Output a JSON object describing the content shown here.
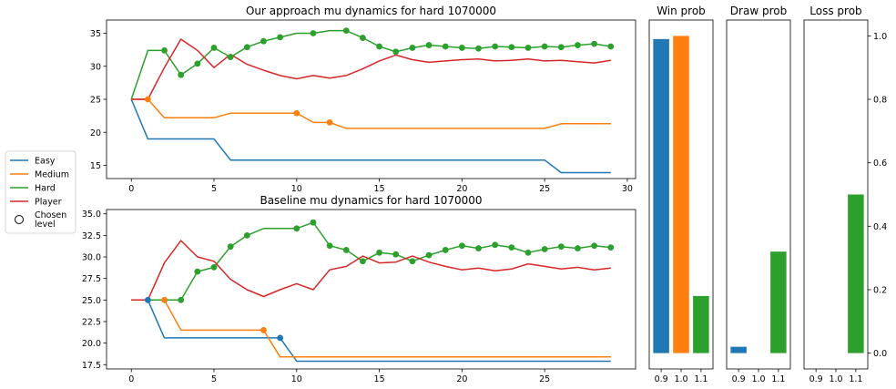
{
  "colors": {
    "Easy": "#1f77b4",
    "Medium": "#ff7f0e",
    "Hard": "#2ca02c",
    "Player": "#d62728"
  },
  "legend": {
    "placement": "left",
    "items": [
      {
        "label": "Easy",
        "series": "Easy"
      },
      {
        "label": "Medium",
        "series": "Medium"
      },
      {
        "label": "Hard",
        "series": "Hard"
      },
      {
        "label": "Player",
        "series": "Player"
      },
      {
        "label": "Chosen\nlevel",
        "marker": "open-circle"
      }
    ]
  },
  "chart_data": [
    {
      "id": "top",
      "type": "line",
      "title": "Our approach mu dynamics for hard 1070000",
      "xlim": [
        -1.5,
        30.5
      ],
      "ylim": [
        13,
        37
      ],
      "xticks": [
        0,
        5,
        10,
        15,
        20,
        25,
        30
      ],
      "yticks": [
        15,
        20,
        25,
        30,
        35
      ],
      "yticklabels": [
        "15",
        "20",
        "25",
        "30",
        "35"
      ],
      "x": [
        0,
        1,
        2,
        3,
        4,
        5,
        6,
        7,
        8,
        9,
        10,
        11,
        12,
        13,
        14,
        15,
        16,
        17,
        18,
        19,
        20,
        21,
        22,
        23,
        24,
        25,
        26,
        27,
        28,
        29
      ],
      "series": [
        {
          "name": "Easy",
          "values": [
            25,
            19,
            19,
            19,
            19,
            19,
            15.8,
            15.8,
            15.8,
            15.8,
            15.8,
            15.8,
            15.8,
            15.8,
            15.8,
            15.8,
            15.8,
            15.8,
            15.8,
            15.8,
            15.8,
            15.8,
            15.8,
            15.8,
            15.8,
            15.8,
            13.9,
            13.9,
            13.9,
            13.9
          ]
        },
        {
          "name": "Medium",
          "values": [
            25,
            25,
            22.2,
            22.2,
            22.2,
            22.2,
            22.9,
            22.9,
            22.9,
            22.9,
            22.9,
            21.5,
            21.5,
            20.6,
            20.6,
            20.6,
            20.6,
            20.6,
            20.6,
            20.6,
            20.6,
            20.6,
            20.6,
            20.6,
            20.6,
            20.6,
            21.3,
            21.3,
            21.3,
            21.3
          ]
        },
        {
          "name": "Hard",
          "values": [
            25,
            32.4,
            32.4,
            28.7,
            30.4,
            32.8,
            31.4,
            32.9,
            33.8,
            34.4,
            35,
            35,
            35.4,
            35.4,
            34.3,
            33,
            32.2,
            32.8,
            33.2,
            33,
            32.8,
            32.7,
            33,
            32.9,
            32.8,
            33,
            32.9,
            33.2,
            33.4,
            33
          ]
        },
        {
          "name": "Player",
          "values": [
            25,
            25,
            29.8,
            34.1,
            32.4,
            29.8,
            31.8,
            30.3,
            29.4,
            28.6,
            28.1,
            28.6,
            28.2,
            28.6,
            29.6,
            30.8,
            31.7,
            31,
            30.6,
            30.8,
            31,
            31.1,
            30.8,
            30.9,
            31.1,
            30.8,
            30.9,
            30.7,
            30.5,
            30.9
          ]
        }
      ],
      "chosen": [
        {
          "x": 1,
          "series": "Medium"
        },
        {
          "x": 2,
          "series": "Hard"
        },
        {
          "x": 3,
          "series": "Hard"
        },
        {
          "x": 4,
          "series": "Hard"
        },
        {
          "x": 5,
          "series": "Hard"
        },
        {
          "x": 6,
          "series": "Hard"
        },
        {
          "x": 7,
          "series": "Hard"
        },
        {
          "x": 8,
          "series": "Hard"
        },
        {
          "x": 9,
          "series": "Hard"
        },
        {
          "x": 10,
          "series": "Medium"
        },
        {
          "x": 11,
          "series": "Hard"
        },
        {
          "x": 12,
          "series": "Medium"
        },
        {
          "x": 13,
          "series": "Hard"
        },
        {
          "x": 14,
          "series": "Hard"
        },
        {
          "x": 15,
          "series": "Hard"
        },
        {
          "x": 16,
          "series": "Hard"
        },
        {
          "x": 17,
          "series": "Hard"
        },
        {
          "x": 18,
          "series": "Hard"
        },
        {
          "x": 19,
          "series": "Hard"
        },
        {
          "x": 20,
          "series": "Hard"
        },
        {
          "x": 21,
          "series": "Hard"
        },
        {
          "x": 22,
          "series": "Hard"
        },
        {
          "x": 23,
          "series": "Hard"
        },
        {
          "x": 24,
          "series": "Hard"
        },
        {
          "x": 25,
          "series": "Hard"
        },
        {
          "x": 26,
          "series": "Hard"
        },
        {
          "x": 27,
          "series": "Hard"
        },
        {
          "x": 28,
          "series": "Hard"
        },
        {
          "x": 29,
          "series": "Hard"
        }
      ]
    },
    {
      "id": "bottom",
      "type": "line",
      "title": "Baseline mu dynamics for hard 1070000",
      "xlim": [
        -1.5,
        30.5
      ],
      "ylim": [
        17,
        35.5
      ],
      "xticks": [
        0,
        5,
        10,
        15,
        20,
        25
      ],
      "yticks": [
        17.5,
        20,
        22.5,
        25,
        27.5,
        30,
        32.5,
        35
      ],
      "yticklabels": [
        "17.5",
        "20.0",
        "22.5",
        "25.0",
        "27.5",
        "30.0",
        "32.5",
        "35.0"
      ],
      "x": [
        0,
        1,
        2,
        3,
        4,
        5,
        6,
        7,
        8,
        9,
        10,
        11,
        12,
        13,
        14,
        15,
        16,
        17,
        18,
        19,
        20,
        21,
        22,
        23,
        24,
        25,
        26,
        27,
        28,
        29
      ],
      "series": [
        {
          "name": "Easy",
          "values": [
            25,
            25,
            20.6,
            20.6,
            20.6,
            20.6,
            20.6,
            20.6,
            20.6,
            20.6,
            17.9,
            17.9,
            17.9,
            17.9,
            17.9,
            17.9,
            17.9,
            17.9,
            17.9,
            17.9,
            17.9,
            17.9,
            17.9,
            17.9,
            17.9,
            17.9,
            17.9,
            17.9,
            17.9,
            17.9
          ]
        },
        {
          "name": "Medium",
          "values": [
            25,
            25,
            25,
            21.5,
            21.5,
            21.5,
            21.5,
            21.5,
            21.5,
            18.4,
            18.4,
            18.4,
            18.4,
            18.4,
            18.4,
            18.4,
            18.4,
            18.4,
            18.4,
            18.4,
            18.4,
            18.4,
            18.4,
            18.4,
            18.4,
            18.4,
            18.4,
            18.4,
            18.4,
            18.4
          ]
        },
        {
          "name": "Hard",
          "values": [
            25,
            25,
            25,
            25,
            28.3,
            28.8,
            31.2,
            32.5,
            33.3,
            33.3,
            33.3,
            34,
            31.3,
            30.8,
            29.5,
            30.5,
            30.3,
            29.5,
            30.2,
            30.8,
            31.3,
            31,
            31.4,
            31.1,
            30.5,
            30.9,
            31.2,
            31,
            31.3,
            31.1
          ]
        },
        {
          "name": "Player",
          "values": [
            25,
            25,
            29.3,
            31.9,
            30,
            29.5,
            27.4,
            26.2,
            25.4,
            26.2,
            26.9,
            26.2,
            28.5,
            28.9,
            30.1,
            29.3,
            29.4,
            30.1,
            29.4,
            28.9,
            28.5,
            28.7,
            28.4,
            28.6,
            29.2,
            28.9,
            28.6,
            28.8,
            28.5,
            28.7
          ]
        }
      ],
      "chosen": [
        {
          "x": 1,
          "series": "Easy"
        },
        {
          "x": 2,
          "series": "Medium"
        },
        {
          "x": 3,
          "series": "Hard"
        },
        {
          "x": 4,
          "series": "Hard"
        },
        {
          "x": 5,
          "series": "Hard"
        },
        {
          "x": 6,
          "series": "Hard"
        },
        {
          "x": 7,
          "series": "Hard"
        },
        {
          "x": 8,
          "series": "Medium"
        },
        {
          "x": 9,
          "series": "Easy"
        },
        {
          "x": 10,
          "series": "Hard"
        },
        {
          "x": 11,
          "series": "Hard"
        },
        {
          "x": 12,
          "series": "Hard"
        },
        {
          "x": 13,
          "series": "Hard"
        },
        {
          "x": 14,
          "series": "Hard"
        },
        {
          "x": 15,
          "series": "Hard"
        },
        {
          "x": 16,
          "series": "Hard"
        },
        {
          "x": 17,
          "series": "Hard"
        },
        {
          "x": 18,
          "series": "Hard"
        },
        {
          "x": 19,
          "series": "Hard"
        },
        {
          "x": 20,
          "series": "Hard"
        },
        {
          "x": 21,
          "series": "Hard"
        },
        {
          "x": 22,
          "series": "Hard"
        },
        {
          "x": 23,
          "series": "Hard"
        },
        {
          "x": 24,
          "series": "Hard"
        },
        {
          "x": 25,
          "series": "Hard"
        },
        {
          "x": 26,
          "series": "Hard"
        },
        {
          "x": 27,
          "series": "Hard"
        },
        {
          "x": 28,
          "series": "Hard"
        },
        {
          "x": 29,
          "series": "Hard"
        }
      ]
    },
    {
      "id": "win",
      "type": "bar",
      "title": "Win prob",
      "categories": [
        "0.9",
        "1.0",
        "1.1"
      ],
      "values": [
        0.99,
        1.0,
        0.18
      ],
      "colors": [
        "#1f77b4",
        "#ff7f0e",
        "#2ca02c"
      ],
      "ylim": [
        -0.05,
        1.05
      ],
      "yticks_visible": false
    },
    {
      "id": "draw",
      "type": "bar",
      "title": "Draw prob",
      "categories": [
        "0.9",
        "1.0",
        "1.1"
      ],
      "values": [
        0.02,
        0.0,
        0.32
      ],
      "colors": [
        "#1f77b4",
        "#ff7f0e",
        "#2ca02c"
      ],
      "ylim": [
        -0.05,
        1.05
      ],
      "yticks_visible": false
    },
    {
      "id": "loss",
      "type": "bar",
      "title": "Loss prob",
      "categories": [
        "0.9",
        "1.0",
        "1.1"
      ],
      "values": [
        0.0,
        0.0,
        0.5
      ],
      "colors": [
        "#1f77b4",
        "#ff7f0e",
        "#2ca02c"
      ],
      "ylim": [
        -0.05,
        1.05
      ],
      "yticks": [
        0.0,
        0.2,
        0.4,
        0.6,
        0.8,
        1.0
      ],
      "yticklabels": [
        "0.0",
        "0.2",
        "0.4",
        "0.6",
        "0.8",
        "1.0"
      ],
      "yaxis_side": "right"
    }
  ]
}
